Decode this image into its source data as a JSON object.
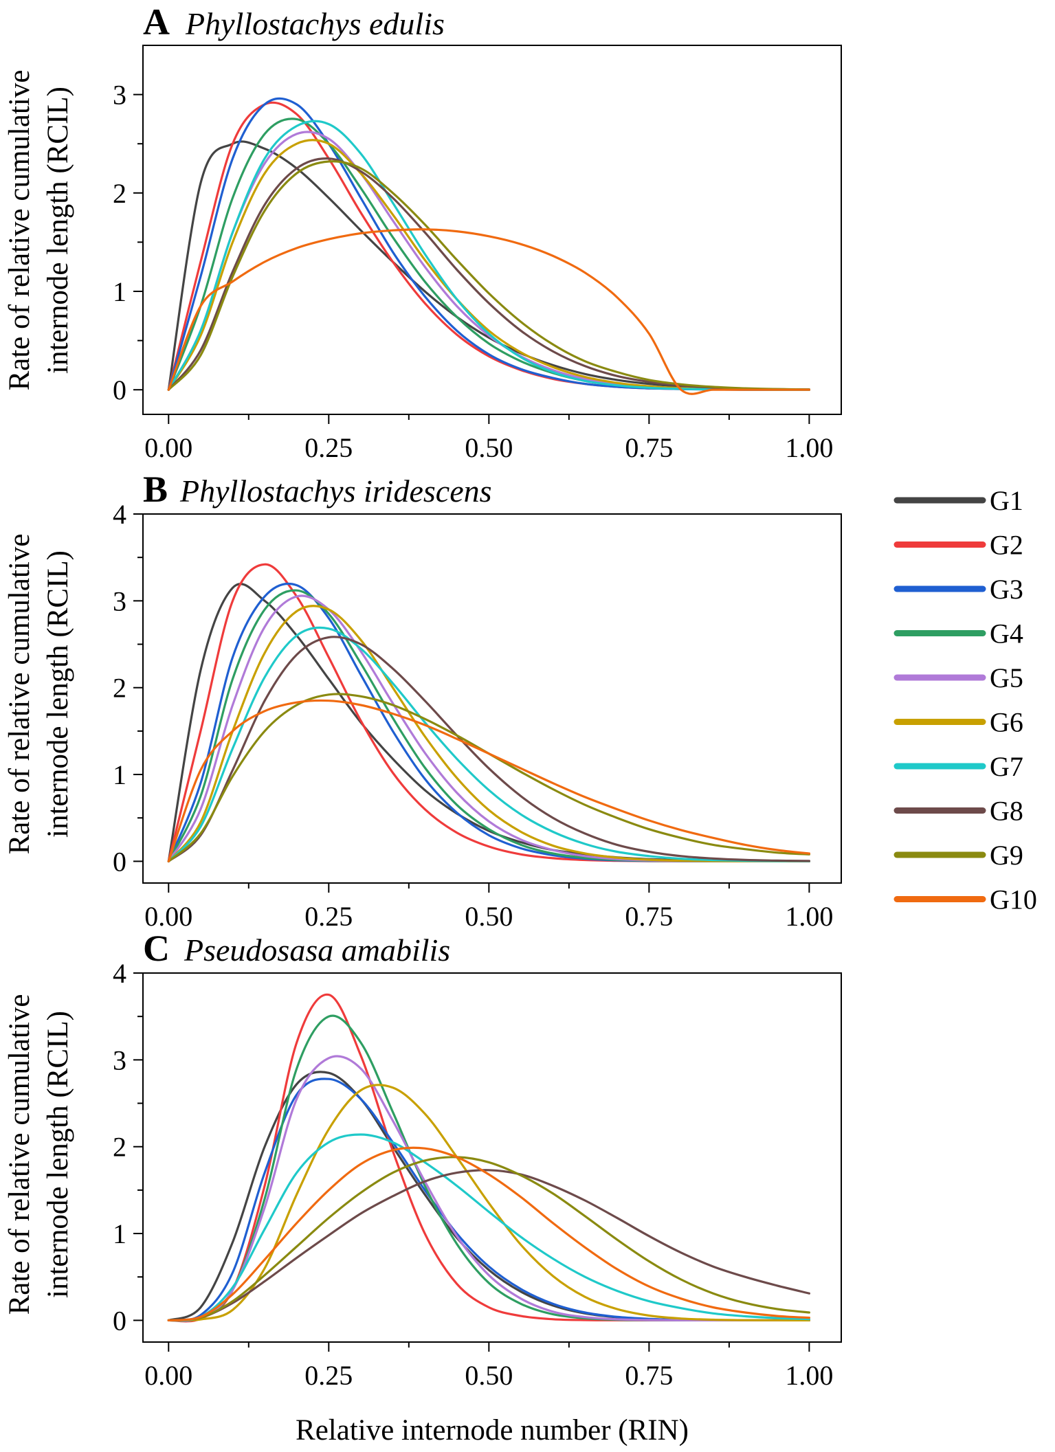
{
  "figure": {
    "xlabel": "Relative internode number (RIN)",
    "ylabel_line1": "Rate of relative cumulative",
    "ylabel_line2": "internode length (RCIL)"
  },
  "legend": [
    {
      "name": "G1",
      "color": "#444444"
    },
    {
      "name": "G2",
      "color": "#ef3b3b"
    },
    {
      "name": "G3",
      "color": "#1f5fd1"
    },
    {
      "name": "G4",
      "color": "#2e9e62"
    },
    {
      "name": "G5",
      "color": "#b07ad8"
    },
    {
      "name": "G6",
      "color": "#c8a000"
    },
    {
      "name": "G7",
      "color": "#1fc9c9"
    },
    {
      "name": "G8",
      "color": "#6d4a4a"
    },
    {
      "name": "G9",
      "color": "#8a8a10"
    },
    {
      "name": "G10",
      "color": "#f06a10"
    }
  ],
  "chart_data": [
    {
      "type": "line",
      "panel": "A",
      "title": "Phyllostachys edulis",
      "xlabel": "Relative internode number (RIN)",
      "ylabel": "Rate of relative cumulative internode length (RCIL)",
      "xlim": [
        -0.04,
        1.05
      ],
      "ylim": [
        -0.25,
        3.5
      ],
      "xticks": [
        0,
        0.25,
        0.5,
        0.75,
        1
      ],
      "xtick_labels": [
        "0.00",
        "0.25",
        "0.50",
        "0.75",
        "1.00"
      ],
      "yticks": [
        0,
        1,
        2,
        3
      ],
      "ytick_labels": [
        "0",
        "1",
        "2",
        "3"
      ],
      "x": [
        0,
        0.05,
        0.1,
        0.15,
        0.2,
        0.25,
        0.3,
        0.35,
        0.4,
        0.45,
        0.5,
        0.55,
        0.6,
        0.65,
        0.7,
        0.75,
        0.8,
        0.85,
        0.9,
        0.95,
        1
      ],
      "series": [
        {
          "name": "G1",
          "values": [
            0,
            2.1,
            2.5,
            2.45,
            2.25,
            1.95,
            1.62,
            1.3,
            1.0,
            0.74,
            0.53,
            0.37,
            0.25,
            0.16,
            0.1,
            0.06,
            0.035,
            0.02,
            0.01,
            0.005,
            0.002
          ]
        },
        {
          "name": "G2",
          "values": [
            0,
            1.3,
            2.5,
            2.9,
            2.8,
            2.35,
            1.8,
            1.3,
            0.88,
            0.56,
            0.34,
            0.2,
            0.11,
            0.06,
            0.03,
            0.015,
            0.007,
            0.003,
            0.001,
            0.0005,
            0.0002
          ]
        },
        {
          "name": "G3",
          "values": [
            0,
            1.15,
            2.35,
            2.9,
            2.9,
            2.5,
            1.95,
            1.4,
            0.95,
            0.6,
            0.36,
            0.21,
            0.12,
            0.06,
            0.03,
            0.015,
            0.007,
            0.003,
            0.001,
            0.0005,
            0.0002
          ]
        },
        {
          "name": "G4",
          "values": [
            0,
            0.85,
            1.95,
            2.6,
            2.75,
            2.5,
            2.05,
            1.55,
            1.1,
            0.74,
            0.47,
            0.29,
            0.17,
            0.09,
            0.05,
            0.025,
            0.012,
            0.005,
            0.002,
            0.001,
            0.0003
          ]
        },
        {
          "name": "G5",
          "values": [
            0,
            0.6,
            1.6,
            2.3,
            2.6,
            2.55,
            2.2,
            1.72,
            1.25,
            0.85,
            0.55,
            0.34,
            0.2,
            0.11,
            0.06,
            0.03,
            0.014,
            0.006,
            0.002,
            0.001,
            0.0003
          ]
        },
        {
          "name": "G6",
          "values": [
            0,
            0.55,
            1.5,
            2.2,
            2.5,
            2.5,
            2.2,
            1.78,
            1.32,
            0.92,
            0.6,
            0.38,
            0.23,
            0.13,
            0.07,
            0.035,
            0.017,
            0.008,
            0.003,
            0.001,
            0.0004
          ]
        },
        {
          "name": "G7",
          "values": [
            0,
            0.6,
            1.6,
            2.35,
            2.68,
            2.7,
            2.4,
            1.9,
            1.38,
            0.92,
            0.57,
            0.33,
            0.18,
            0.09,
            0.045,
            0.02,
            0.009,
            0.004,
            0.0015,
            0.0006,
            0.0002
          ]
        },
        {
          "name": "G8",
          "values": [
            0,
            0.4,
            1.2,
            1.88,
            2.25,
            2.35,
            2.22,
            1.95,
            1.6,
            1.22,
            0.88,
            0.6,
            0.39,
            0.24,
            0.14,
            0.08,
            0.042,
            0.022,
            0.011,
            0.005,
            0.002
          ]
        },
        {
          "name": "G9",
          "values": [
            0,
            0.35,
            1.15,
            1.82,
            2.2,
            2.32,
            2.25,
            2.0,
            1.68,
            1.32,
            0.98,
            0.69,
            0.46,
            0.29,
            0.18,
            0.1,
            0.055,
            0.029,
            0.015,
            0.007,
            0.003
          ]
        },
        {
          "name": "G10",
          "values": [
            0,
            0.85,
            1.1,
            1.3,
            1.44,
            1.53,
            1.59,
            1.62,
            1.63,
            1.61,
            1.56,
            1.48,
            1.36,
            1.19,
            0.94,
            0.57,
            0,
            0,
            0,
            0,
            0
          ]
        }
      ]
    },
    {
      "type": "line",
      "panel": "B",
      "title": "Phyllostachys iridescens",
      "xlabel": "Relative internode number (RIN)",
      "ylabel": "Rate of relative cumulative internode length (RCIL)",
      "xlim": [
        -0.04,
        1.05
      ],
      "ylim": [
        -0.25,
        4.0
      ],
      "xticks": [
        0,
        0.25,
        0.5,
        0.75,
        1
      ],
      "xtick_labels": [
        "0.00",
        "0.25",
        "0.50",
        "0.75",
        "1.00"
      ],
      "yticks": [
        0,
        1,
        2,
        3,
        4
      ],
      "ytick_labels": [
        "0",
        "1",
        "2",
        "3",
        "4"
      ],
      "x": [
        0,
        0.05,
        0.1,
        0.15,
        0.2,
        0.25,
        0.3,
        0.35,
        0.4,
        0.45,
        0.5,
        0.55,
        0.6,
        0.65,
        0.7,
        0.75,
        0.8,
        0.85,
        0.9,
        0.95,
        1
      ],
      "series": [
        {
          "name": "G1",
          "values": [
            0,
            2.2,
            3.15,
            3.0,
            2.6,
            2.1,
            1.6,
            1.18,
            0.82,
            0.55,
            0.35,
            0.22,
            0.13,
            0.08,
            0.045,
            0.025,
            0.013,
            0.007,
            0.003,
            0.0015,
            0.0007
          ]
        },
        {
          "name": "G2",
          "values": [
            0,
            1.5,
            3.0,
            3.42,
            3.05,
            2.35,
            1.62,
            1.02,
            0.6,
            0.33,
            0.17,
            0.08,
            0.036,
            0.015,
            0.006,
            0.0022,
            0.0008,
            0.0003,
            0.0001,
            0,
            0
          ]
        },
        {
          "name": "G3",
          "values": [
            0,
            0.9,
            2.35,
            3.05,
            3.18,
            2.8,
            2.15,
            1.5,
            0.95,
            0.56,
            0.3,
            0.15,
            0.07,
            0.03,
            0.012,
            0.005,
            0.0018,
            0.0006,
            0.0002,
            0,
            0
          ]
        },
        {
          "name": "G4",
          "values": [
            0,
            0.75,
            2.1,
            2.9,
            3.12,
            2.85,
            2.28,
            1.65,
            1.08,
            0.65,
            0.37,
            0.19,
            0.09,
            0.04,
            0.017,
            0.007,
            0.0026,
            0.0009,
            0.0003,
            0.0001,
            0
          ]
        },
        {
          "name": "G5",
          "values": [
            0,
            0.6,
            1.8,
            2.7,
            3.05,
            2.9,
            2.42,
            1.82,
            1.25,
            0.79,
            0.46,
            0.25,
            0.13,
            0.06,
            0.026,
            0.011,
            0.004,
            0.0016,
            0.0006,
            0.0002,
            0
          ]
        },
        {
          "name": "G6",
          "values": [
            0,
            0.45,
            1.5,
            2.4,
            2.88,
            2.9,
            2.55,
            2.0,
            1.44,
            0.96,
            0.59,
            0.34,
            0.18,
            0.09,
            0.042,
            0.018,
            0.007,
            0.003,
            0.001,
            0.0004,
            0.0001
          ]
        },
        {
          "name": "G7",
          "values": [
            0,
            0.4,
            1.3,
            2.12,
            2.6,
            2.68,
            2.45,
            2.05,
            1.6,
            1.18,
            0.82,
            0.54,
            0.34,
            0.2,
            0.11,
            0.06,
            0.03,
            0.014,
            0.006,
            0.0025,
            0.001
          ]
        },
        {
          "name": "G8",
          "values": [
            0,
            0.3,
            1.05,
            1.85,
            2.38,
            2.58,
            2.5,
            2.22,
            1.85,
            1.45,
            1.07,
            0.75,
            0.5,
            0.32,
            0.19,
            0.11,
            0.06,
            0.032,
            0.016,
            0.008,
            0.004
          ]
        },
        {
          "name": "G9",
          "values": [
            0,
            0.32,
            0.98,
            1.5,
            1.8,
            1.92,
            1.9,
            1.8,
            1.64,
            1.45,
            1.24,
            1.03,
            0.83,
            0.65,
            0.5,
            0.37,
            0.27,
            0.19,
            0.14,
            0.1,
            0.08
          ]
        },
        {
          "name": "G10",
          "values": [
            0,
            1.05,
            1.5,
            1.73,
            1.83,
            1.85,
            1.8,
            1.7,
            1.57,
            1.41,
            1.24,
            1.07,
            0.9,
            0.74,
            0.6,
            0.47,
            0.36,
            0.27,
            0.19,
            0.13,
            0.09
          ]
        }
      ]
    },
    {
      "type": "line",
      "panel": "C",
      "title": "Pseudosasa amabilis",
      "xlabel": "Relative internode number (RIN)",
      "ylabel": "Rate of relative cumulative internode length (RCIL)",
      "xlim": [
        -0.04,
        1.05
      ],
      "ylim": [
        -0.25,
        4.0
      ],
      "xticks": [
        0,
        0.25,
        0.5,
        0.75,
        1
      ],
      "xtick_labels": [
        "0.00",
        "0.25",
        "0.50",
        "0.75",
        "1.00"
      ],
      "yticks": [
        0,
        1,
        2,
        3,
        4
      ],
      "ytick_labels": [
        "0",
        "1",
        "2",
        "3",
        "4"
      ],
      "x": [
        0,
        0.05,
        0.1,
        0.15,
        0.2,
        0.25,
        0.3,
        0.35,
        0.4,
        0.45,
        0.5,
        0.55,
        0.6,
        0.65,
        0.7,
        0.75,
        0.8,
        0.85,
        0.9,
        0.95,
        1
      ],
      "series": [
        {
          "name": "G1",
          "values": [
            0,
            0.15,
            0.9,
            2.0,
            2.72,
            2.85,
            2.55,
            2.0,
            1.45,
            0.95,
            0.58,
            0.33,
            0.17,
            0.08,
            0.035,
            0.014,
            0.005,
            0.002,
            0.0006,
            0.0002,
            0
          ]
        },
        {
          "name": "G2",
          "values": [
            0,
            0.02,
            0.35,
            1.55,
            3.2,
            3.75,
            3.05,
            1.95,
            1.0,
            0.42,
            0.15,
            0.05,
            0.013,
            0.003,
            0.0006,
            0.0001,
            0,
            0,
            0,
            0,
            0
          ]
        },
        {
          "name": "G3",
          "values": [
            0,
            0.06,
            0.55,
            1.7,
            2.6,
            2.78,
            2.55,
            2.05,
            1.5,
            1.0,
            0.62,
            0.36,
            0.19,
            0.09,
            0.04,
            0.017,
            0.006,
            0.002,
            0.0008,
            0.0003,
            0.0001
          ]
        },
        {
          "name": "G4",
          "values": [
            0,
            0.03,
            0.35,
            1.4,
            2.9,
            3.5,
            3.2,
            2.4,
            1.55,
            0.88,
            0.43,
            0.19,
            0.07,
            0.024,
            0.007,
            0.002,
            0.0005,
            0.0001,
            0,
            0,
            0
          ]
        },
        {
          "name": "G5",
          "values": [
            0,
            0.03,
            0.35,
            1.3,
            2.55,
            3.02,
            2.9,
            2.3,
            1.6,
            0.97,
            0.52,
            0.25,
            0.1,
            0.037,
            0.012,
            0.0035,
            0.0009,
            0.0002,
            0,
            0,
            0
          ]
        },
        {
          "name": "G6",
          "values": [
            0,
            0.01,
            0.12,
            0.6,
            1.45,
            2.2,
            2.65,
            2.68,
            2.38,
            1.88,
            1.35,
            0.87,
            0.51,
            0.27,
            0.13,
            0.055,
            0.021,
            0.007,
            0.002,
            0.0006,
            0.0002
          ]
        },
        {
          "name": "G7",
          "values": [
            0,
            0.04,
            0.38,
            1.05,
            1.7,
            2.05,
            2.14,
            2.05,
            1.82,
            1.55,
            1.25,
            0.96,
            0.71,
            0.5,
            0.34,
            0.22,
            0.14,
            0.08,
            0.047,
            0.026,
            0.014
          ]
        },
        {
          "name": "G8",
          "values": [
            0,
            0.03,
            0.2,
            0.45,
            0.72,
            0.98,
            1.23,
            1.43,
            1.6,
            1.7,
            1.73,
            1.68,
            1.55,
            1.38,
            1.18,
            0.97,
            0.78,
            0.62,
            0.5,
            0.4,
            0.31
          ]
        },
        {
          "name": "G9",
          "values": [
            0,
            0.03,
            0.22,
            0.52,
            0.85,
            1.18,
            1.47,
            1.7,
            1.84,
            1.88,
            1.82,
            1.67,
            1.46,
            1.2,
            0.93,
            0.68,
            0.47,
            0.31,
            0.2,
            0.13,
            0.09
          ]
        },
        {
          "name": "G10",
          "values": [
            0,
            0.04,
            0.3,
            0.7,
            1.12,
            1.5,
            1.8,
            1.96,
            1.98,
            1.88,
            1.68,
            1.42,
            1.12,
            0.84,
            0.59,
            0.39,
            0.25,
            0.15,
            0.09,
            0.05,
            0.03
          ]
        }
      ]
    }
  ]
}
